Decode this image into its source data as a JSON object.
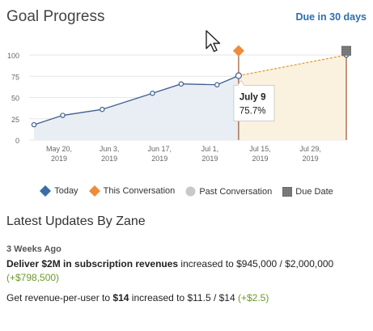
{
  "header": {
    "title": "Goal Progress",
    "due_label": "Due in 30 days"
  },
  "chart_data": {
    "type": "line",
    "x_ticks": [
      [
        "May 20,",
        "2019"
      ],
      [
        "Jun 3,",
        "2019"
      ],
      [
        "Jun 17,",
        "2019"
      ],
      [
        "Jul 1,",
        "2019"
      ],
      [
        "Jul 15,",
        "2019"
      ],
      [
        "Jul 29,",
        "2019"
      ]
    ],
    "y_ticks": [
      "0",
      "25",
      "50",
      "75",
      "100"
    ],
    "ylim": [
      0,
      100
    ],
    "xlim": [
      "2019-05-13",
      "2019-08-08"
    ],
    "series": [
      {
        "name": "Past Conversation",
        "points": [
          [
            "2019-05-13",
            18
          ],
          [
            "2019-05-21",
            29
          ],
          [
            "2019-06-01",
            36
          ],
          [
            "2019-06-15",
            55
          ],
          [
            "2019-06-23",
            66
          ],
          [
            "2019-07-03",
            65
          ],
          [
            "2019-07-09",
            75.7
          ]
        ]
      },
      {
        "name": "Today",
        "points": [
          [
            "2019-07-09",
            75.7
          ],
          [
            "2019-08-08",
            100
          ]
        ]
      }
    ],
    "markers": {
      "this_conversation": [
        "2019-07-09",
        105
      ],
      "due_date": [
        "2019-08-08",
        105
      ]
    },
    "tooltip": {
      "date": "July 9",
      "value": "75.7%"
    },
    "legend": [
      "Today",
      "This Conversation",
      "Past Conversation",
      "Due Date"
    ],
    "colors": {
      "past_line": "#3f5f8f",
      "past_fill": "#e9edf4",
      "future_line": "#d9a040",
      "future_fill": "#fbf1df",
      "today": "#3a6ea5",
      "this_conversation": "#ee8c3a",
      "past_conversation": "#c8c8c8",
      "due_date": "#6a6a6a",
      "grid": "#e6e6e6",
      "divider": "#a0522d"
    }
  },
  "updates": {
    "title": "Latest Updates By Zane",
    "time_ago": "3 Weeks Ago",
    "items": [
      {
        "goal": "Deliver $2M in subscription revenues",
        "text": " increased to $945,000 / $2,000,000",
        "delta": "(+$798,500)"
      },
      {
        "goal_prefix": "Get revenue-per-user to ",
        "goal_bold": "$14",
        "text": " increased to $11.5 / $14 ",
        "delta": "(+$2.5)"
      }
    ]
  }
}
